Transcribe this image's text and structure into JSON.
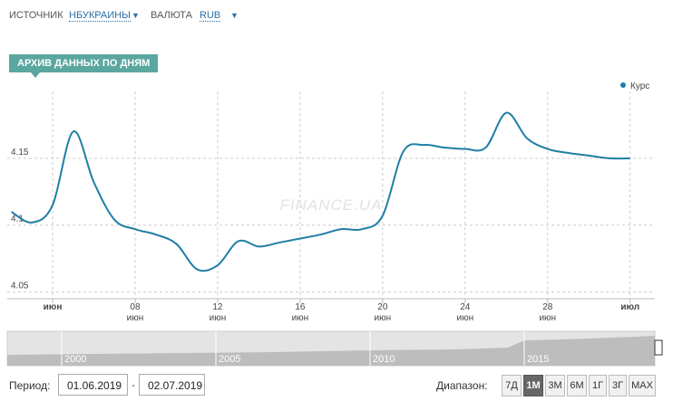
{
  "header": {
    "source_label": "ИСТОЧНИК",
    "source_value": "НБУКРАИНЫ",
    "currency_label": "ВАЛЮТА",
    "currency_value": "RUB"
  },
  "banner": "АРХИВ ДАННЫХ ПО ДНЯМ",
  "chart_data": {
    "type": "line",
    "watermark": "FINANCE.UA",
    "x": [
      2,
      3,
      4,
      5,
      6,
      7,
      8,
      9,
      10,
      11,
      12,
      13,
      14,
      15,
      16,
      17,
      18,
      19,
      20,
      21,
      22,
      23,
      24,
      25,
      26,
      27,
      28,
      29,
      30,
      31,
      32
    ],
    "series": [
      {
        "name": "Курс",
        "color": "#1f7fa5",
        "values": [
          4.11,
          4.102,
          4.115,
          4.17,
          4.132,
          4.104,
          4.097,
          4.093,
          4.086,
          4.067,
          4.07,
          4.088,
          4.084,
          4.087,
          4.09,
          4.093,
          4.097,
          4.097,
          4.107,
          4.155,
          4.16,
          4.158,
          4.157,
          4.158,
          4.184,
          4.165,
          4.157,
          4.154,
          4.152,
          4.15,
          4.15
        ]
      }
    ],
    "xlim": [
      1.8,
      33.2
    ],
    "xticks": [
      {
        "value": 4,
        "label": "июн"
      },
      {
        "value": 8,
        "label": "08"
      },
      {
        "value": 12,
        "label": "12"
      },
      {
        "value": 16,
        "label": "16"
      },
      {
        "value": 20,
        "label": "20"
      },
      {
        "value": 24,
        "label": "24"
      },
      {
        "value": 28,
        "label": "28"
      },
      {
        "value": 32,
        "label": "июл"
      }
    ],
    "xtick_sublabels": [
      null,
      "июн",
      "июн",
      "июн",
      "июн",
      "июн",
      "июн",
      null
    ],
    "ylim": [
      4.045,
      4.2
    ],
    "yticks": [
      4.05,
      4.1,
      4.15
    ],
    "grid": true,
    "legend": "top-right"
  },
  "navigator": {
    "years": [
      "2000",
      "2005",
      "2010",
      "2015"
    ]
  },
  "period": {
    "label": "Период:",
    "from": "01.06.2019",
    "to": "02.07.2019"
  },
  "range": {
    "label": "Диапазон:",
    "buttons": [
      "7Д",
      "1М",
      "3М",
      "6М",
      "1Г",
      "3Г",
      "MAX"
    ],
    "active": 1
  }
}
